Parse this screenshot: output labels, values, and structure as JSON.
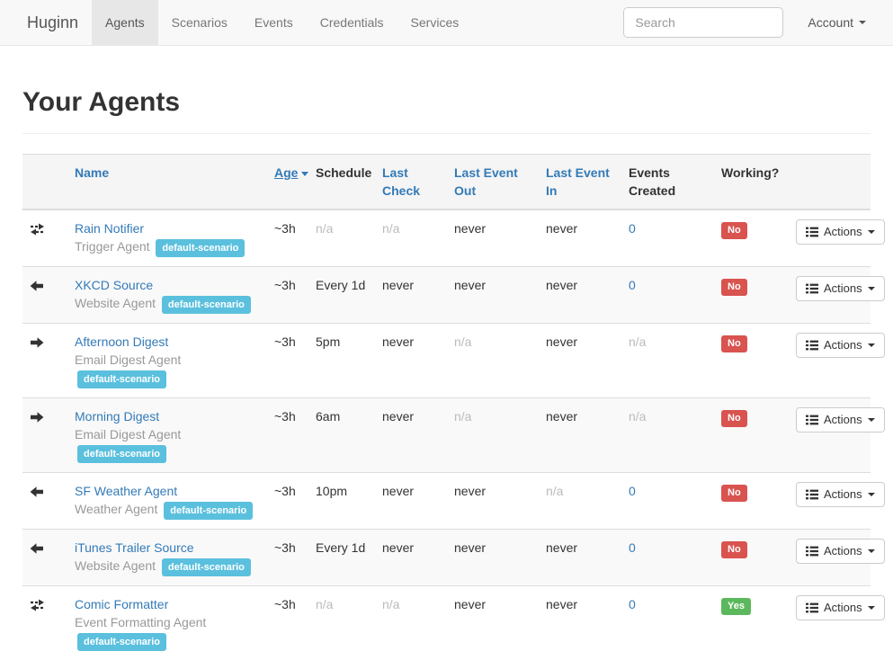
{
  "navbar": {
    "brand": "Huginn",
    "tabs": [
      {
        "label": "Agents",
        "active": true
      },
      {
        "label": "Scenarios",
        "active": false
      },
      {
        "label": "Events",
        "active": false
      },
      {
        "label": "Credentials",
        "active": false
      },
      {
        "label": "Services",
        "active": false
      }
    ],
    "search": {
      "placeholder": "Search"
    },
    "account_label": "Account"
  },
  "page": {
    "title": "Your Agents"
  },
  "table": {
    "headers": [
      {
        "label": "Name",
        "link": true,
        "sorted": false
      },
      {
        "label": "Age",
        "link": true,
        "sorted": true,
        "sort_direction": "desc"
      },
      {
        "label": "Schedule",
        "link": false,
        "sorted": false
      },
      {
        "label": "Last Check",
        "link": true,
        "sorted": false
      },
      {
        "label": "Last Event Out",
        "link": true,
        "sorted": false
      },
      {
        "label": "Last Event In",
        "link": true,
        "sorted": false
      },
      {
        "label": "Events Created",
        "link": false,
        "sorted": false
      },
      {
        "label": "Working?",
        "link": false,
        "sorted": false
      }
    ],
    "actions_label": "Actions",
    "rows": [
      {
        "icon": "exchange",
        "name": "Rain Notifier",
        "type": "Trigger Agent",
        "scenario": "default-scenario",
        "age": "~3h",
        "schedule": "n/a",
        "last_check": "n/a",
        "last_event_out": "never",
        "last_event_in": "never",
        "events_created": "0",
        "working": "No"
      },
      {
        "icon": "arrow-left",
        "name": "XKCD Source",
        "type": "Website Agent",
        "scenario": "default-scenario",
        "age": "~3h",
        "schedule": "Every 1d",
        "last_check": "never",
        "last_event_out": "never",
        "last_event_in": "never",
        "events_created": "0",
        "working": "No"
      },
      {
        "icon": "arrow-right",
        "name": "Afternoon Digest",
        "type": "Email Digest Agent",
        "scenario": "default-scenario",
        "age": "~3h",
        "schedule": "5pm",
        "last_check": "never",
        "last_event_out": "n/a",
        "last_event_in": "never",
        "events_created": "n/a",
        "working": "No"
      },
      {
        "icon": "arrow-right",
        "name": "Morning Digest",
        "type": "Email Digest Agent",
        "scenario": "default-scenario",
        "age": "~3h",
        "schedule": "6am",
        "last_check": "never",
        "last_event_out": "n/a",
        "last_event_in": "never",
        "events_created": "n/a",
        "working": "No"
      },
      {
        "icon": "arrow-left",
        "name": "SF Weather Agent",
        "type": "Weather Agent",
        "scenario": "default-scenario",
        "age": "~3h",
        "schedule": "10pm",
        "last_check": "never",
        "last_event_out": "never",
        "last_event_in": "n/a",
        "events_created": "0",
        "working": "No"
      },
      {
        "icon": "arrow-left",
        "name": "iTunes Trailer Source",
        "type": "Website Agent",
        "scenario": "default-scenario",
        "age": "~3h",
        "schedule": "Every 1d",
        "last_check": "never",
        "last_event_out": "never",
        "last_event_in": "never",
        "events_created": "0",
        "working": "No"
      },
      {
        "icon": "exchange",
        "name": "Comic Formatter",
        "type": "Event Formatting Agent",
        "scenario": "default-scenario",
        "age": "~3h",
        "schedule": "n/a",
        "last_check": "n/a",
        "last_event_out": "never",
        "last_event_in": "never",
        "events_created": "0",
        "working": "Yes"
      }
    ]
  },
  "colors": {
    "link_blue": "#337ab7",
    "badge_info": "#5bc0de",
    "label_danger": "#d9534f",
    "label_success": "#5cb85c",
    "navbar_bg": "#f8f8f8",
    "stripe_bg": "#f9f9f9",
    "thead_bg": "#f5f5f5"
  }
}
